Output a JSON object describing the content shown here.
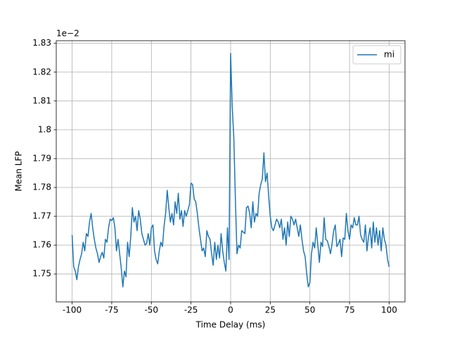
{
  "chart_data": {
    "type": "line",
    "offset_label": "1e−2",
    "xlabel": "Time Delay (ms)",
    "ylabel": "Mean LFP",
    "xlim": [
      -110,
      110
    ],
    "ylim": [
      1.7403,
      1.8309
    ],
    "xticks": [
      -100,
      -75,
      -50,
      -25,
      0,
      25,
      50,
      75,
      100
    ],
    "yticks": [
      1.75,
      1.76,
      1.77,
      1.78,
      1.79,
      1.8,
      1.81,
      1.82,
      1.83
    ],
    "grid": true,
    "legend": "upper right",
    "x": [
      -100,
      -99,
      -98,
      -97,
      -96,
      -95,
      -94,
      -93,
      -92,
      -91,
      -90,
      -89,
      -88,
      -87,
      -86,
      -85,
      -84,
      -83,
      -82,
      -81,
      -80,
      -79,
      -78,
      -77,
      -76,
      -75,
      -74,
      -73,
      -72,
      -71,
      -70,
      -69,
      -68,
      -67,
      -66,
      -65,
      -64,
      -63,
      -62,
      -61,
      -60,
      -59,
      -58,
      -57,
      -56,
      -55,
      -54,
      -53,
      -52,
      -51,
      -50,
      -49,
      -48,
      -47,
      -46,
      -45,
      -44,
      -43,
      -42,
      -41,
      -40,
      -39,
      -38,
      -37,
      -36,
      -35,
      -34,
      -33,
      -32,
      -31,
      -30,
      -29,
      -28,
      -27,
      -26,
      -25,
      -24,
      -23,
      -22,
      -21,
      -20,
      -19,
      -18,
      -17,
      -16,
      -15,
      -14,
      -13,
      -12,
      -11,
      -10,
      -9,
      -8,
      -7,
      -6,
      -5,
      -4,
      -3,
      -2,
      -1,
      0,
      1,
      2,
      3,
      4,
      5,
      6,
      7,
      8,
      9,
      10,
      11,
      12,
      13,
      14,
      15,
      16,
      17,
      18,
      19,
      20,
      21,
      22,
      23,
      24,
      25,
      26,
      27,
      28,
      29,
      30,
      31,
      32,
      33,
      34,
      35,
      36,
      37,
      38,
      39,
      40,
      41,
      42,
      43,
      44,
      45,
      46,
      47,
      48,
      49,
      50,
      51,
      52,
      53,
      54,
      55,
      56,
      57,
      58,
      59,
      60,
      61,
      62,
      63,
      64,
      65,
      66,
      67,
      68,
      69,
      70,
      71,
      72,
      73,
      74,
      75,
      76,
      77,
      78,
      79,
      80,
      81,
      82,
      83,
      84,
      85,
      86,
      87,
      88,
      89,
      90,
      91,
      92,
      93,
      94,
      95,
      96,
      97,
      98,
      99,
      100
    ],
    "series": [
      {
        "name": "mi",
        "color": "#1f77b4",
        "values": [
          1.7635,
          1.7525,
          1.751,
          1.748,
          1.7525,
          1.755,
          1.757,
          1.761,
          1.758,
          1.764,
          1.763,
          1.768,
          1.771,
          1.766,
          1.762,
          1.759,
          1.757,
          1.754,
          1.756,
          1.7575,
          1.7555,
          1.762,
          1.761,
          1.766,
          1.769,
          1.7685,
          1.7695,
          1.766,
          1.758,
          1.762,
          1.757,
          1.752,
          1.7455,
          1.751,
          1.749,
          1.761,
          1.756,
          1.763,
          1.773,
          1.768,
          1.77,
          1.765,
          1.772,
          1.769,
          1.764,
          1.762,
          1.76,
          1.7605,
          1.764,
          1.76,
          1.766,
          1.767,
          1.758,
          1.755,
          1.7535,
          1.758,
          1.761,
          1.7595,
          1.7665,
          1.771,
          1.779,
          1.773,
          1.768,
          1.771,
          1.767,
          1.775,
          1.771,
          1.778,
          1.769,
          1.772,
          1.7665,
          1.772,
          1.77,
          1.772,
          1.774,
          1.7815,
          1.781,
          1.776,
          1.775,
          1.771,
          1.766,
          1.762,
          1.758,
          1.759,
          1.756,
          1.765,
          1.763,
          1.762,
          1.757,
          1.753,
          1.761,
          1.755,
          1.76,
          1.7555,
          1.764,
          1.758,
          1.754,
          1.751,
          1.766,
          1.755,
          1.8265,
          1.808,
          1.7975,
          1.776,
          1.757,
          1.76,
          1.759,
          1.765,
          1.7645,
          1.764,
          1.773,
          1.7735,
          1.771,
          1.766,
          1.775,
          1.768,
          1.771,
          1.77,
          1.778,
          1.781,
          1.783,
          1.792,
          1.782,
          1.785,
          1.777,
          1.77,
          1.766,
          1.765,
          1.767,
          1.769,
          1.768,
          1.766,
          1.769,
          1.762,
          1.766,
          1.76,
          1.768,
          1.763,
          1.77,
          1.769,
          1.767,
          1.769,
          1.766,
          1.763,
          1.767,
          1.762,
          1.758,
          1.756,
          1.75,
          1.7455,
          1.747,
          1.757,
          1.761,
          1.759,
          1.766,
          1.76,
          1.754,
          1.761,
          1.7595,
          1.7695,
          1.762,
          1.7615,
          1.7595,
          1.757,
          1.7605,
          1.765,
          1.767,
          1.7595,
          1.7605,
          1.762,
          1.756,
          1.7625,
          1.762,
          1.771,
          1.765,
          1.762,
          1.767,
          1.766,
          1.7695,
          1.767,
          1.767,
          1.77,
          1.7635,
          1.762,
          1.761,
          1.767,
          1.758,
          1.763,
          1.766,
          1.759,
          1.768,
          1.761,
          1.766,
          1.76,
          1.765,
          1.758,
          1.766,
          1.762,
          1.76,
          1.755,
          1.7525
        ]
      }
    ]
  }
}
